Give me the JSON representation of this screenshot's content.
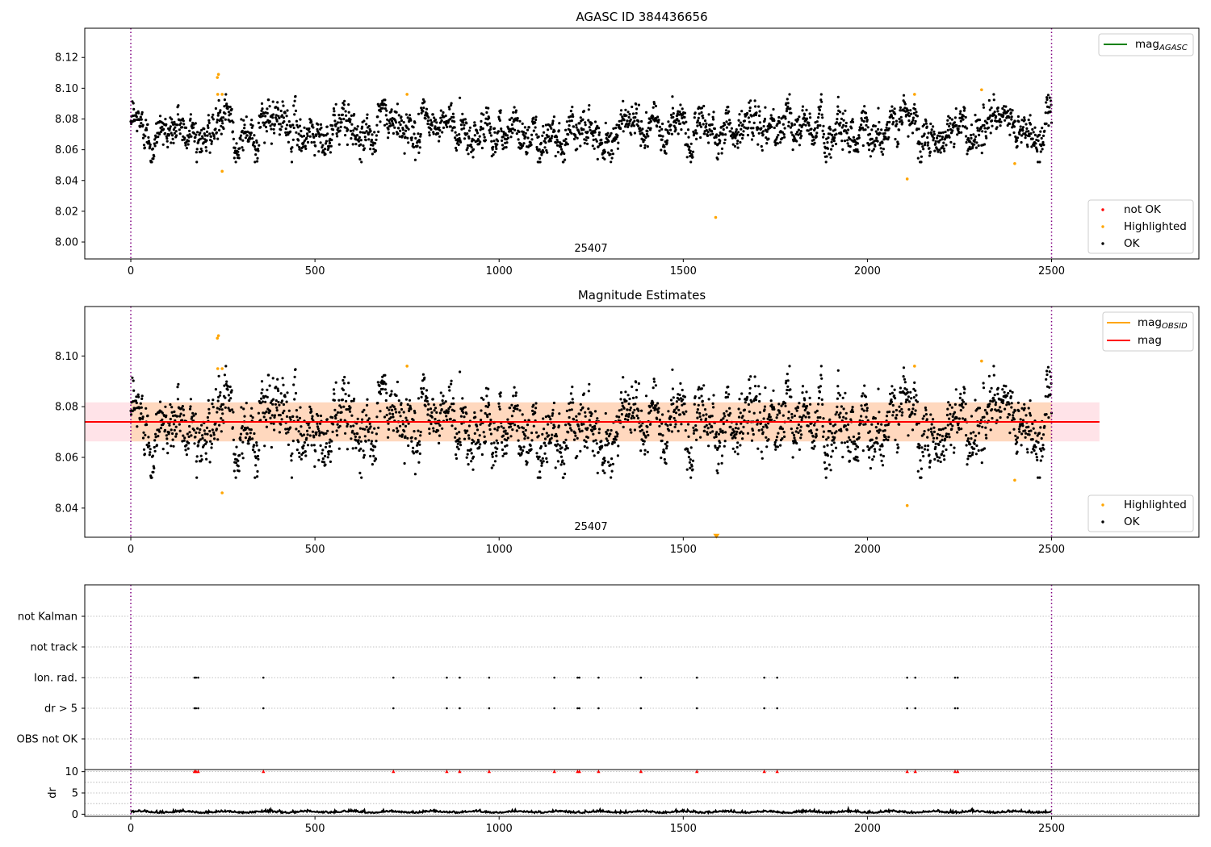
{
  "chart_data": [
    {
      "type": "scatter",
      "title": "AGASC ID 384436656",
      "xlim": [
        -125,
        2900
      ],
      "ylim": [
        7.989,
        8.139
      ],
      "xticks": [
        "0",
        "500",
        "1000",
        "1500",
        "2000",
        "2500"
      ],
      "yticks": [
        "8.00",
        "8.02",
        "8.04",
        "8.06",
        "8.08",
        "8.10",
        "8.12"
      ],
      "obsid_label": "25407",
      "obsid_boundaries": [
        0,
        2500
      ],
      "legend_lines": [
        {
          "name": "mag",
          "sub": "AGASC",
          "color": "#008000"
        }
      ],
      "legend_points": [
        {
          "name": "not OK",
          "color": "#ff0000"
        },
        {
          "name": "Highlighted",
          "color": "#ffa500"
        },
        {
          "name": "OK",
          "color": "#000000"
        }
      ],
      "series": [
        {
          "name": "OK",
          "color": "#000000",
          "x_range": [
            0,
            2500
          ],
          "n": 2500,
          "mean": 8.074,
          "spread": 0.0085
        },
        {
          "name": "Highlighted",
          "color": "#ffa500",
          "points": [
            [
              235,
              8.107
            ],
            [
              238,
              8.109
            ],
            [
              236,
              8.096
            ],
            [
              248,
              8.096
            ],
            [
              248,
              8.046
            ],
            [
              750,
              8.096
            ],
            [
              1588,
              8.016
            ],
            [
              2108,
              8.041
            ],
            [
              2128,
              8.096
            ],
            [
              2310,
              8.099
            ],
            [
              2400,
              8.051
            ]
          ]
        }
      ]
    },
    {
      "type": "scatter",
      "title": "Magnitude Estimates",
      "xlim": [
        -125,
        2900
      ],
      "ylim": [
        8.0285,
        8.1195
      ],
      "xticks": [
        "0",
        "500",
        "1000",
        "1500",
        "2000",
        "2500"
      ],
      "yticks": [
        "8.04",
        "8.06",
        "8.08",
        "8.10"
      ],
      "obsid_label": "25407",
      "obsid_boundaries": [
        0,
        2500
      ],
      "mag_line": 8.074,
      "band_obsid": [
        8.0663,
        8.0817
      ],
      "band_mag": [
        8.0663,
        8.0817
      ],
      "band_mag_x_end": 2630,
      "legend_lines": [
        {
          "name": "mag",
          "sub": "OBSID",
          "color": "#ffa500"
        },
        {
          "name": "mag",
          "sub": "",
          "color": "#ff0000"
        }
      ],
      "legend_points": [
        {
          "name": "Highlighted",
          "color": "#ffa500"
        },
        {
          "name": "OK",
          "color": "#000000"
        }
      ],
      "series": [
        {
          "name": "OK",
          "color": "#000000",
          "x_range": [
            0,
            2500
          ],
          "n": 2500,
          "mean": 8.074,
          "spread": 0.0085
        },
        {
          "name": "Highlighted",
          "color": "#ffa500",
          "points": [
            [
              235,
              8.107
            ],
            [
              238,
              8.108
            ],
            [
              236,
              8.095
            ],
            [
              248,
              8.095
            ],
            [
              248,
              8.046
            ],
            [
              750,
              8.096
            ],
            [
              2108,
              8.041
            ],
            [
              2128,
              8.096
            ],
            [
              2310,
              8.098
            ],
            [
              2400,
              8.051
            ]
          ]
        },
        {
          "name": "Highlighted below range",
          "color": "#ffa500",
          "marker": "triangle-down",
          "points": [
            [
              1590,
              8.0289
            ]
          ]
        }
      ]
    },
    {
      "type": "scatter",
      "title": "",
      "xlim": [
        -125,
        2900
      ],
      "categories": [
        "not Kalman",
        "not track",
        "Ion. rad.",
        "dr > 5",
        "OBS not OK"
      ],
      "obsid_boundaries": [
        0,
        2500
      ],
      "flag_x": [
        173,
        177,
        183,
        360,
        713,
        858,
        893,
        973,
        1150,
        1213,
        1218,
        1270,
        1385,
        1537,
        1720,
        1755,
        2108,
        2130,
        2238,
        2245
      ],
      "flag_rows": [
        "Ion. rad.",
        "dr > 5"
      ]
    },
    {
      "type": "line",
      "title": "",
      "ylabel": "dr",
      "xlim": [
        -125,
        2900
      ],
      "ylim": [
        -0.5,
        10.5
      ],
      "xticks": [
        "0",
        "500",
        "1000",
        "1500",
        "2000",
        "2500"
      ],
      "yticks": [
        "0",
        "5",
        "10"
      ],
      "dr_typical": 0.4,
      "dr_clip_value": 10,
      "dr_clip_color": "#ff0000"
    }
  ]
}
